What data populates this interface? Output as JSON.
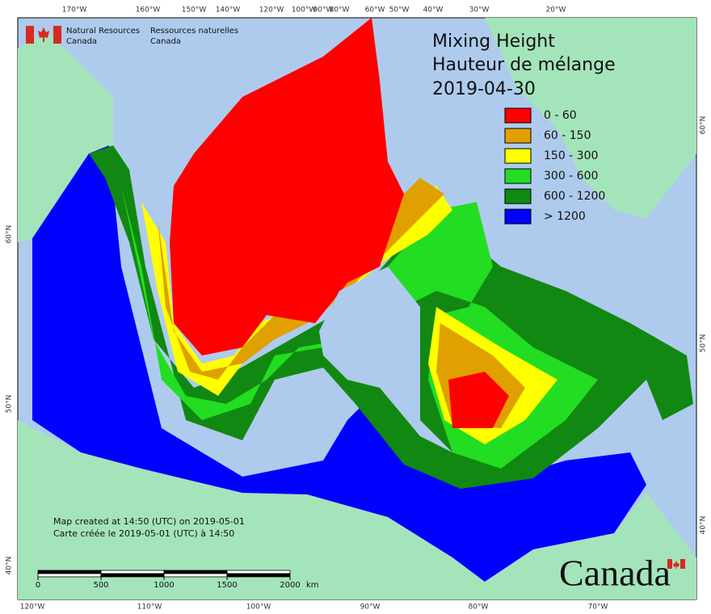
{
  "header": {
    "org_en": [
      "Natural Resources",
      "Canada"
    ],
    "org_fr": [
      "Ressources naturelles",
      "Canada"
    ]
  },
  "title": [
    "Mixing Height",
    "Hauteur de mélange",
    "2019-04-30"
  ],
  "legend": [
    {
      "label": "0 - 60",
      "color": "#ff0000"
    },
    {
      "label": "60 - 150",
      "color": "#e0a000"
    },
    {
      "label": "150 - 300",
      "color": "#ffff00"
    },
    {
      "label": "300 - 600",
      "color": "#22dd22"
    },
    {
      "label": "600 - 1200",
      "color": "#118811"
    },
    {
      "label": "> 1200",
      "color": "#0000ff"
    }
  ],
  "graticule": {
    "top": [
      "170°W",
      "160°W",
      "150°W",
      "140°W",
      "120°W",
      "100°W",
      "90°W",
      "80°W",
      "60°W",
      "50°W",
      "40°W",
      "30°W",
      "20°W"
    ],
    "bottom": [
      "120°W",
      "110°W",
      "100°W",
      "90°W",
      "80°W",
      "70°W"
    ],
    "left": [
      "60°N",
      "50°N",
      "40°N"
    ],
    "right": [
      "60°N",
      "50°N",
      "40°N"
    ]
  },
  "notes": [
    "Map created at 14:50 (UTC) on 2019-05-01",
    "Carte créée le 2019-05-01 (UTC) à 14:50"
  ],
  "scale": {
    "ticks": [
      0,
      500,
      1000,
      1500,
      2000
    ],
    "unit": "km"
  },
  "wordmark": "Canada"
}
